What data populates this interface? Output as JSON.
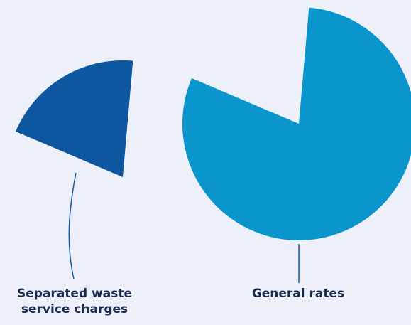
{
  "chart_data": {
    "type": "pie",
    "slices": [
      {
        "label_lines": [
          "Separated waste",
          "service charges"
        ],
        "share": 0.2,
        "color": "#0d56a0"
      },
      {
        "label_lines": [
          "General rates"
        ],
        "share": 0.8,
        "color": "#0a95cd"
      }
    ]
  },
  "colors": {
    "background": "#eef0f9",
    "label_text": "#1a2a4e",
    "leader_line": "#1a5a9e"
  }
}
